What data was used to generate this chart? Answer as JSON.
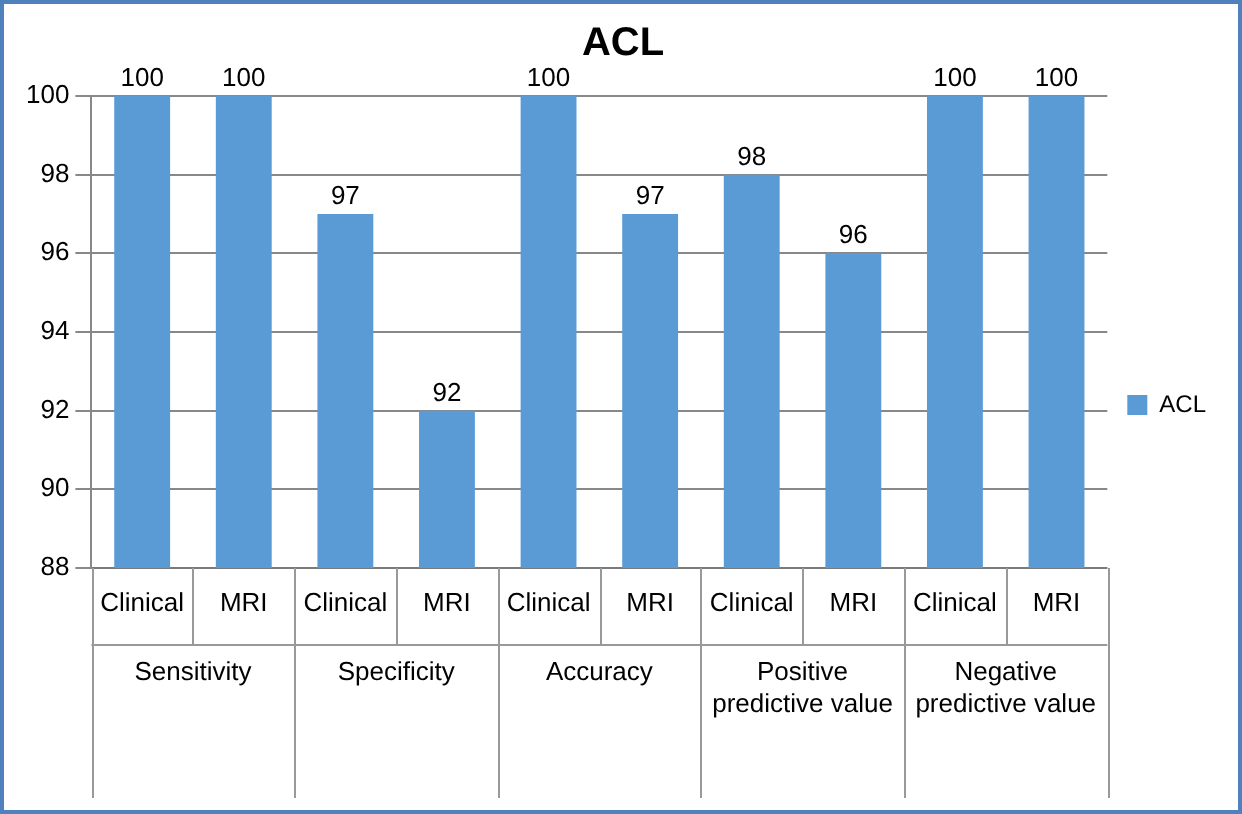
{
  "chart_data": {
    "type": "bar",
    "title": "ACL",
    "categories": [
      "Clinical",
      "MRI",
      "Clinical",
      "MRI",
      "Clinical",
      "MRI",
      "Clinical",
      "MRI",
      "Clinical",
      "MRI"
    ],
    "series": [
      {
        "name": "ACL",
        "color": "#5b9bd5",
        "values": [
          100,
          100,
          97,
          92,
          100,
          97,
          98,
          96,
          100,
          100
        ]
      }
    ],
    "ylim": [
      88,
      100
    ],
    "yticks": [
      88,
      90,
      92,
      94,
      96,
      98,
      100
    ],
    "grid": "y",
    "legend": "right",
    "data_labels": true,
    "annotations": [
      "Sensitivity",
      "Specificity",
      "Accuracy",
      "Positive predictive value",
      "Negative predictive value"
    ]
  }
}
